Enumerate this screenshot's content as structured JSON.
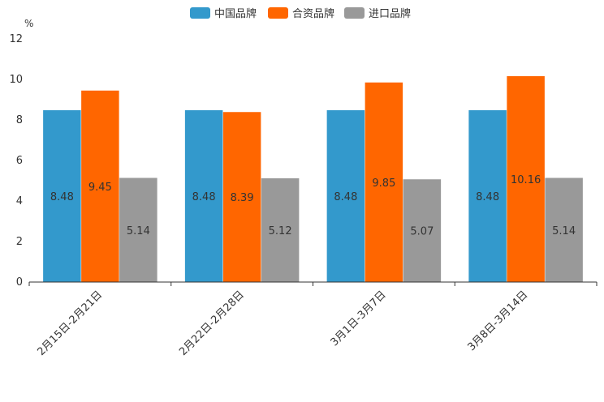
{
  "chart_data": {
    "type": "bar",
    "unit": "%",
    "categories": [
      "2月15日-2月21日",
      "2月22日-2月28日",
      "3月1日-3月7日",
      "3月8日-3月14日"
    ],
    "series": [
      {
        "name": "中国品牌",
        "color": "#3399cc",
        "values": [
          8.48,
          8.48,
          8.48,
          8.48
        ],
        "labels": [
          "8.48",
          "8.48",
          "8.48",
          "8.48"
        ]
      },
      {
        "name": "合资品牌",
        "color": "#ff6600",
        "values": [
          9.45,
          8.39,
          9.85,
          10.16
        ],
        "labels": [
          "9.45",
          "8.39",
          "9.85",
          "10.16"
        ]
      },
      {
        "name": "进口品牌",
        "color": "#999999",
        "values": [
          5.14,
          5.12,
          5.07,
          5.14
        ],
        "labels": [
          "5.14",
          "5.12",
          "5.07",
          "5.14"
        ]
      }
    ],
    "ylim": [
      0,
      12
    ],
    "yticks": [
      0,
      2,
      4,
      6,
      8,
      10,
      12
    ],
    "ytick_labels": [
      "0",
      "2",
      "4",
      "6",
      "8",
      "10",
      "12"
    ],
    "legend_position": "top-center",
    "grid": false
  }
}
